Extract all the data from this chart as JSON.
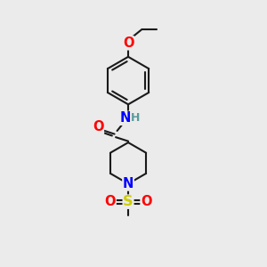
{
  "background_color": "#ebebeb",
  "bond_color": "#1a1a1a",
  "bond_width": 1.5,
  "atom_colors": {
    "O": "#ff0000",
    "N": "#0000ff",
    "S": "#cccc00",
    "H": "#5a9a9a",
    "C": "#1a1a1a"
  },
  "font_size": 9.5,
  "figsize": [
    3.0,
    3.0
  ],
  "dpi": 100
}
